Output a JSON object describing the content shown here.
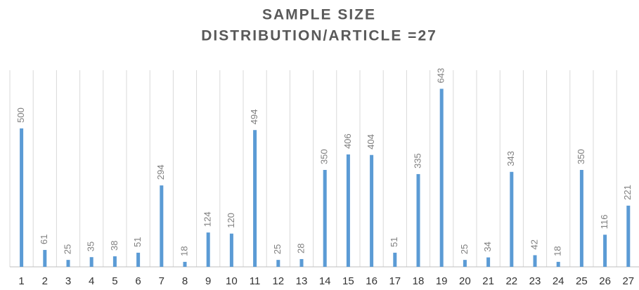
{
  "chart_data": {
    "type": "bar",
    "title": "SAMPLE SIZE",
    "subtitle": "DISTRIBUTION/ARTICLE =27",
    "categories": [
      "1",
      "2",
      "3",
      "4",
      "5",
      "6",
      "7",
      "8",
      "9",
      "10",
      "11",
      "12",
      "13",
      "14",
      "15",
      "16",
      "17",
      "18",
      "19",
      "20",
      "21",
      "22",
      "23",
      "24",
      "25",
      "26",
      "27"
    ],
    "values": [
      500,
      61,
      25,
      35,
      38,
      51,
      294,
      18,
      124,
      120,
      494,
      25,
      28,
      350,
      406,
      404,
      51,
      335,
      643,
      25,
      34,
      343,
      42,
      18,
      350,
      116,
      221
    ],
    "color": "#5b9bd5",
    "ylim": [
      0,
      700
    ]
  }
}
